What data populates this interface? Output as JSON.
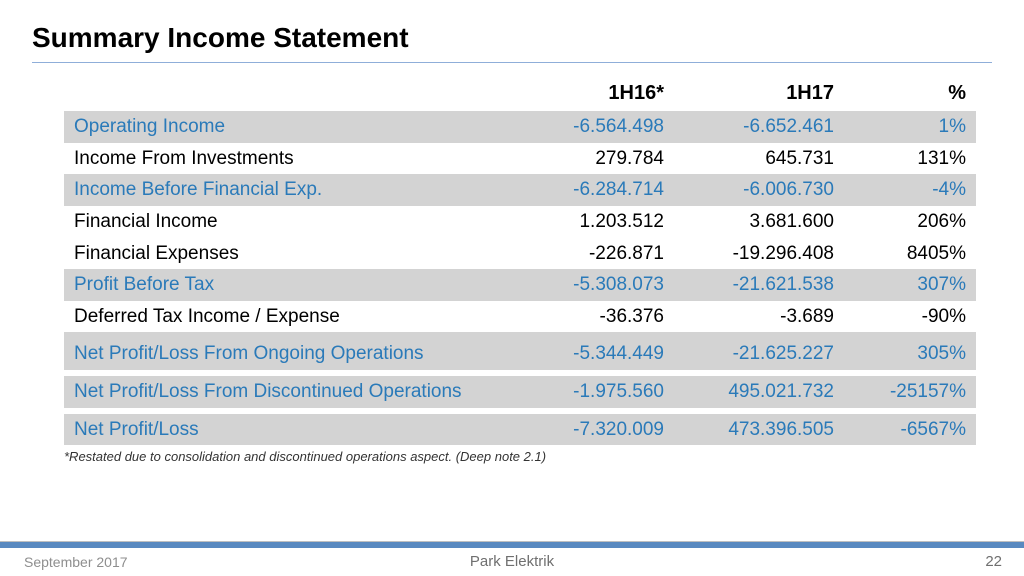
{
  "title": "Summary Income Statement",
  "columns": {
    "a": "1H16*",
    "b": "1H17",
    "c": "%"
  },
  "rows": {
    "r0": {
      "label": "Operating Income",
      "a": "-6.564.498",
      "b": "-6.652.461",
      "c": "1%"
    },
    "r1": {
      "label": "Income From Investments",
      "a": "279.784",
      "b": "645.731",
      "c": "131%"
    },
    "r2": {
      "label": "Income Before Financial Exp.",
      "a": "-6.284.714",
      "b": "-6.006.730",
      "c": "-4%"
    },
    "r3": {
      "label": "Financial Income",
      "a": "1.203.512",
      "b": "3.681.600",
      "c": "206%"
    },
    "r4": {
      "label": "Financial Expenses",
      "a": "-226.871",
      "b": "-19.296.408",
      "c": "8405%"
    },
    "r5": {
      "label": "Profit Before Tax",
      "a": "-5.308.073",
      "b": "-21.621.538",
      "c": "307%"
    },
    "r6": {
      "label": "Deferred Tax Income / Expense",
      "a": "-36.376",
      "b": "-3.689",
      "c": "-90%"
    },
    "r7": {
      "label": "Net Profit/Loss From Ongoing Operations",
      "a": "-5.344.449",
      "b": "-21.625.227",
      "c": "305%"
    },
    "r8": {
      "label": "Net Profit/Loss From Discontinued Operations",
      "a": "-1.975.560",
      "b": "495.021.732",
      "c": "-25157%"
    },
    "r9": {
      "label": "Net Profit/Loss",
      "a": "-7.320.009",
      "b": "473.396.505",
      "c": "-6567%"
    }
  },
  "footnote": "*Restated due to consolidation and discontinued operations aspect. (Deep note 2.1)",
  "footer": {
    "date": "September 2017",
    "company": "Park Elektrik",
    "page": "22"
  },
  "colors": {
    "highlight_text": "#2a7ab9",
    "shade_bg": "#d3d3d3",
    "title_rule": "#8faed9",
    "footer_bar": "#5989c0",
    "footer_text": "#8e8e8e"
  }
}
